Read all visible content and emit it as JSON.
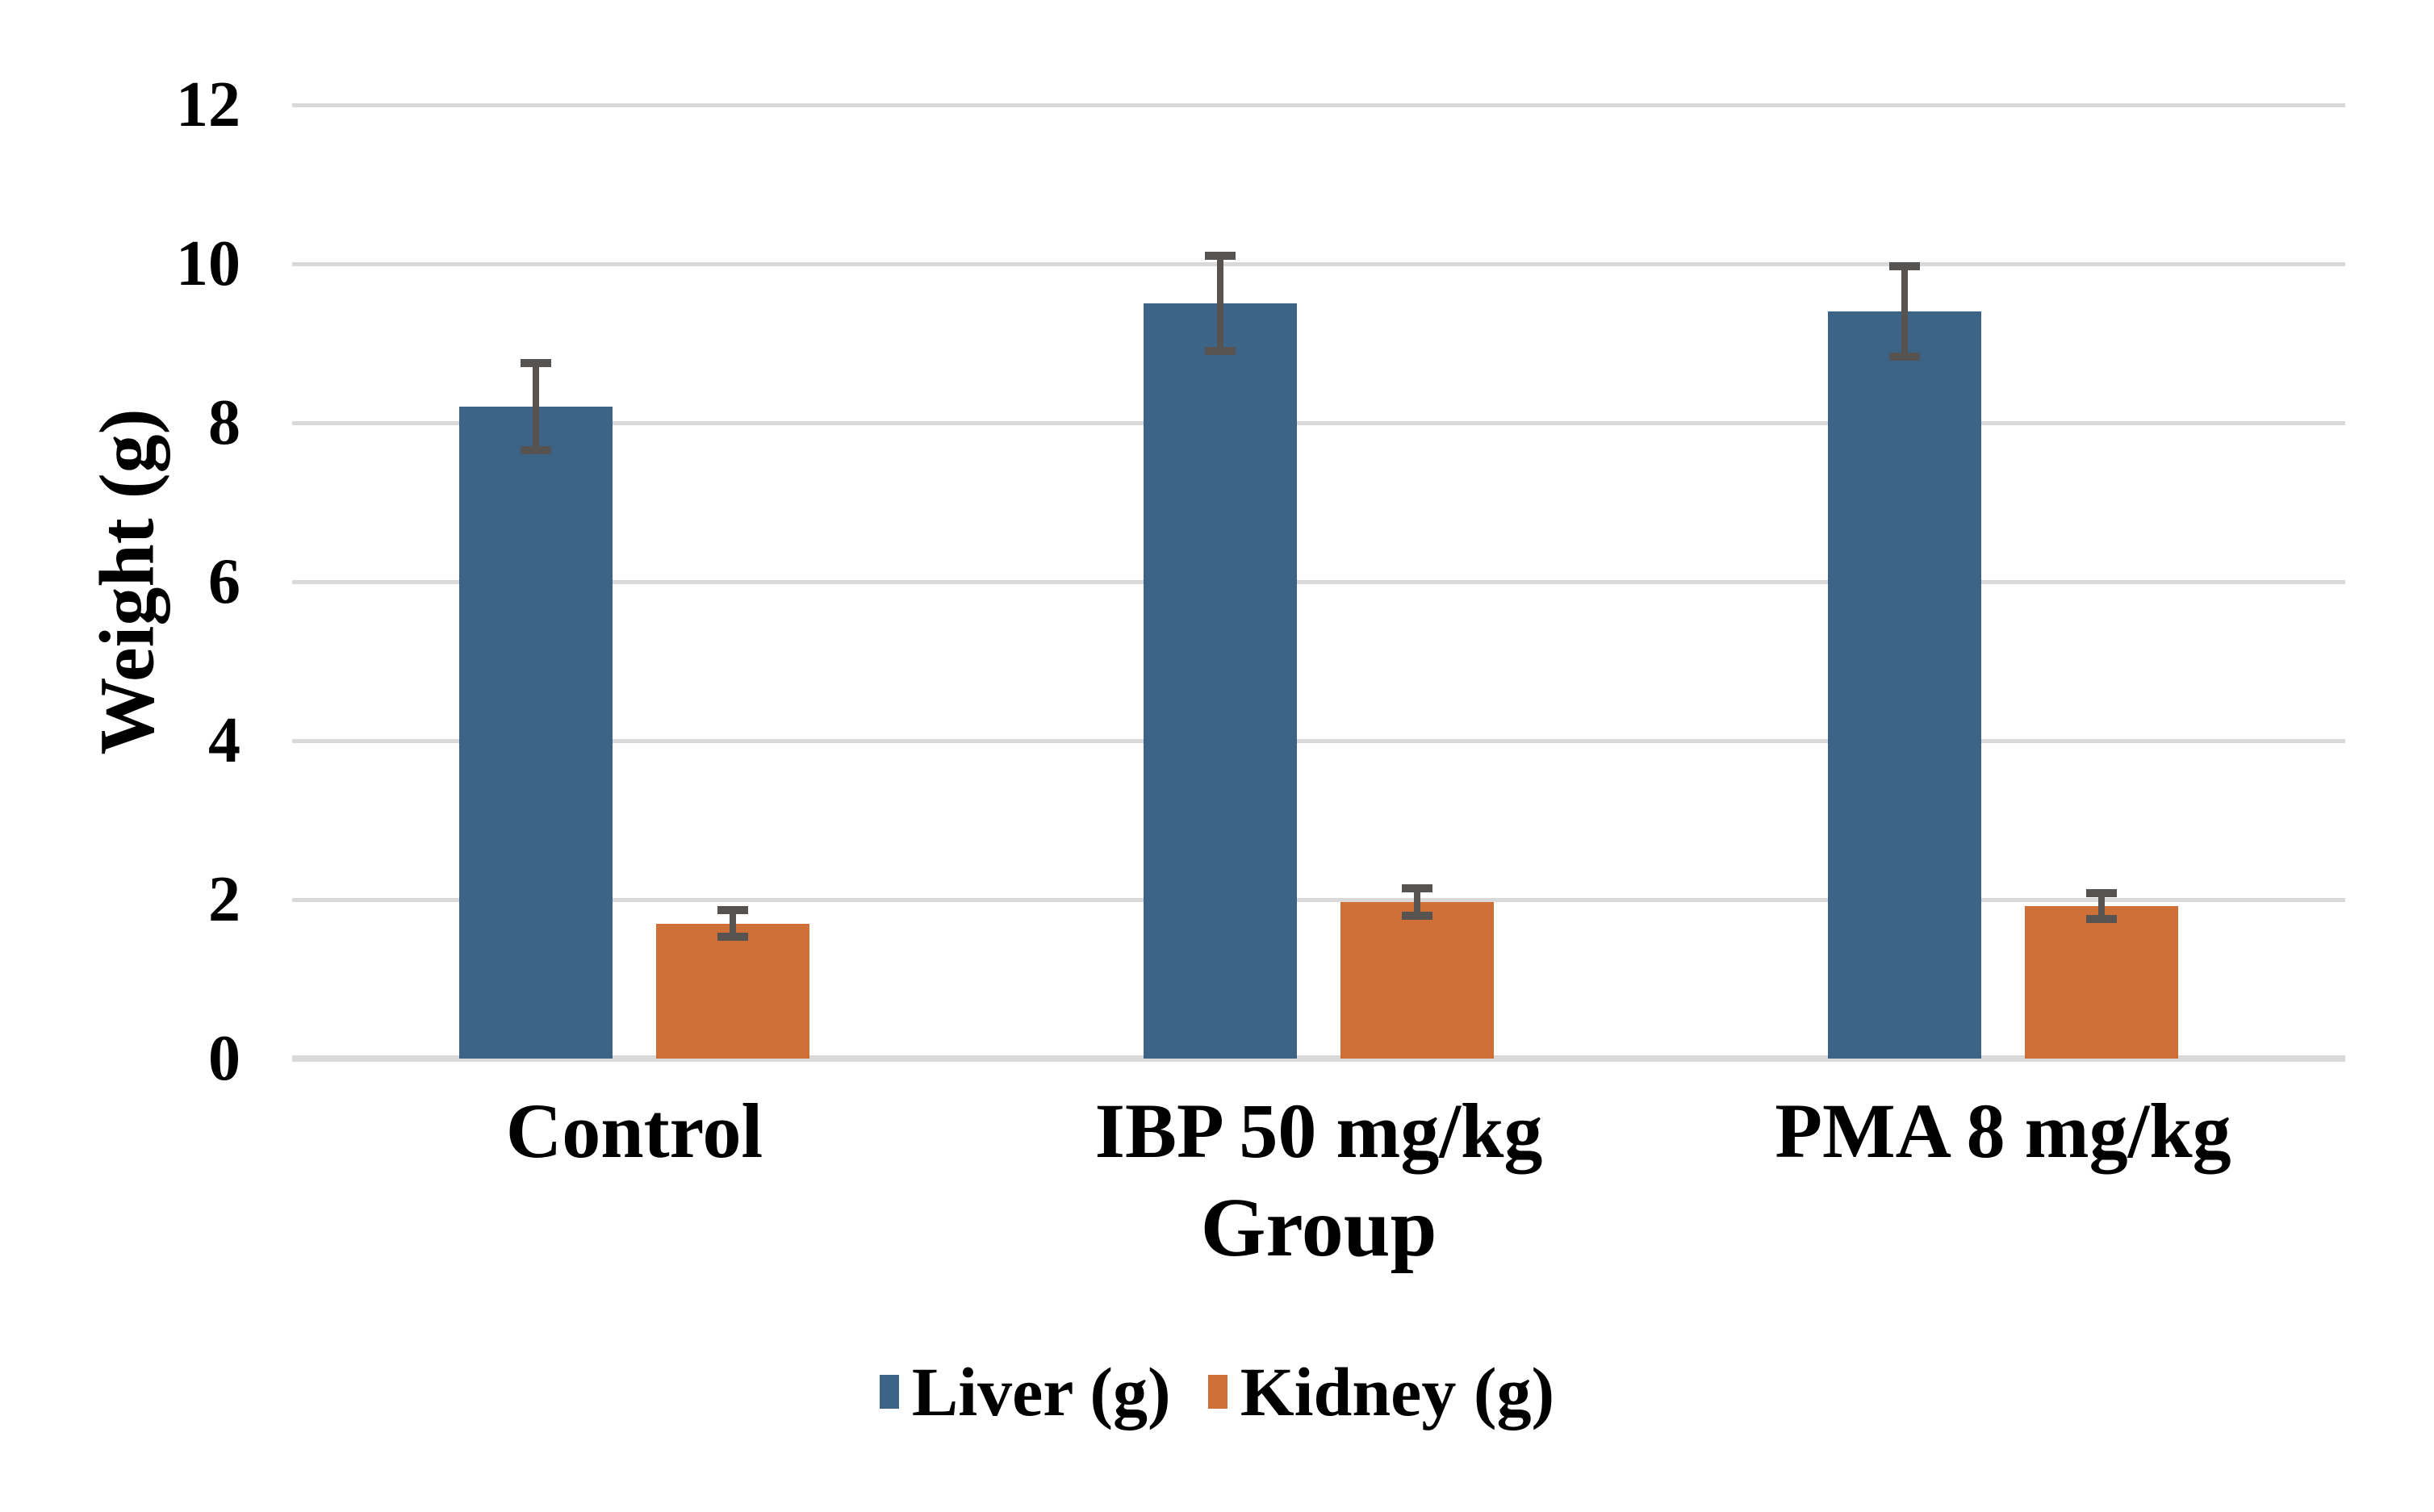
{
  "chart_data": {
    "type": "bar",
    "title": "",
    "categories": [
      "Control",
      "IBP 50 mg/kg",
      "PMA 8 mg/kg"
    ],
    "series": [
      {
        "name": "Liver (g)",
        "color": "#3C6486",
        "values": [
          8.2,
          9.5,
          9.4
        ],
        "errors": [
          0.55,
          0.6,
          0.57
        ]
      },
      {
        "name": "Kidney (g)",
        "color": "#CE7038",
        "values": [
          1.7,
          1.97,
          1.92
        ],
        "errors": [
          0.17,
          0.17,
          0.16
        ]
      }
    ],
    "xlabel": "Group",
    "ylabel": "Weight (g)",
    "ylim": [
      0,
      12
    ],
    "ytick_step": 2,
    "yticks": [
      0,
      2,
      4,
      6,
      8,
      10,
      12
    ],
    "grid": true,
    "legend_position": "bottom",
    "gridline_color": "#D9D9D9",
    "error_bar_color": "#575350",
    "background_color": "#FFFFFF"
  }
}
